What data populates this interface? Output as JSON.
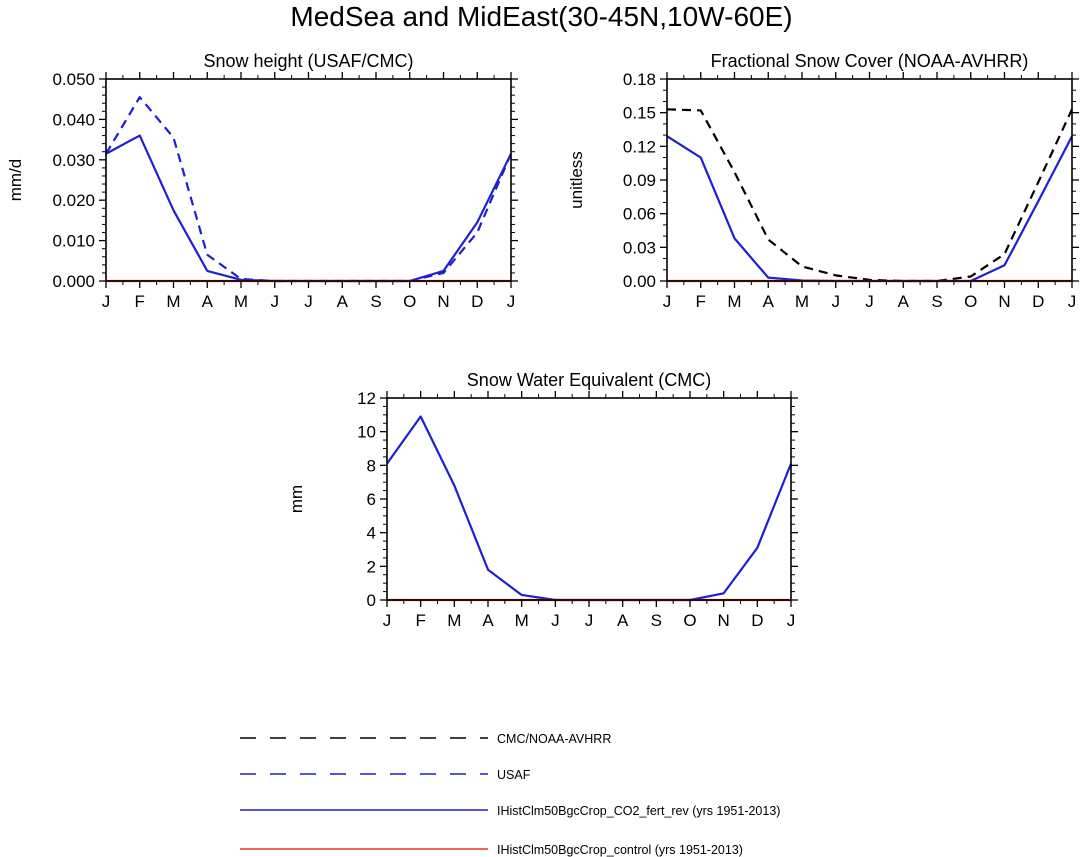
{
  "figure_title": "MedSea and MidEast(30-45N,10W-60E)",
  "legend": {
    "entries": [
      {
        "label": "CMC/NOAA-AVHRR",
        "color": "#000000",
        "dash": "dashed"
      },
      {
        "label": "USAF",
        "color": "#1f1fd6",
        "dash": "dashed"
      },
      {
        "label": "IHistClm50BgcCrop_CO2_fert_rev (yrs 1951-2013)",
        "color": "#1f1fd6",
        "dash": "solid"
      },
      {
        "label": "IHistClm50BgcCrop_control (yrs 1951-2013)",
        "color": "#e8312c",
        "dash": "solid"
      }
    ]
  },
  "chart_data": [
    {
      "type": "line",
      "title": "Snow height (USAF/CMC)",
      "ylabel": "mm/d",
      "x": [
        "J",
        "F",
        "M",
        "A",
        "M",
        "J",
        "J",
        "A",
        "S",
        "O",
        "N",
        "D",
        "J"
      ],
      "ylim": [
        0,
        0.05
      ],
      "yticks": [
        "0.000",
        "0.010",
        "0.020",
        "0.030",
        "0.040",
        "0.050"
      ],
      "yticks_values": [
        0,
        0.01,
        0.02,
        0.03,
        0.04,
        0.05
      ],
      "series": [
        {
          "ref": "USAF",
          "color": "#1f1fd6",
          "dash": "dashed",
          "values": [
            0.0315,
            0.0455,
            0.0355,
            0.0065,
            0.0005,
            0,
            0,
            0,
            0,
            0,
            0.002,
            0.012,
            0.0315
          ]
        },
        {
          "ref": "IHistClm50BgcCrop_CO2_fert_rev",
          "color": "#1f1fd6",
          "dash": "solid",
          "values": [
            0.0315,
            0.036,
            0.0175,
            0.0025,
            0.0003,
            0,
            0,
            0,
            0,
            0,
            0.0025,
            0.0145,
            0.0315
          ]
        },
        {
          "ref": "IHistClm50BgcCrop_control",
          "color": "#e8312c",
          "dash": "solid",
          "values": [
            0,
            0,
            0,
            0,
            0,
            0,
            0,
            0,
            0,
            0,
            0,
            0,
            0
          ]
        }
      ]
    },
    {
      "type": "line",
      "title": "Fractional Snow Cover (NOAA-AVHRR)",
      "ylabel": "unitless",
      "x": [
        "J",
        "F",
        "M",
        "A",
        "M",
        "J",
        "J",
        "A",
        "S",
        "O",
        "N",
        "D",
        "J"
      ],
      "ylim": [
        0,
        0.18
      ],
      "yticks": [
        "0.00",
        "0.03",
        "0.06",
        "0.09",
        "0.12",
        "0.15",
        "0.18"
      ],
      "yticks_values": [
        0,
        0.03,
        0.06,
        0.09,
        0.12,
        0.15,
        0.18
      ],
      "series": [
        {
          "ref": "CMC/NOAA-AVHRR",
          "color": "#000000",
          "dash": "dashed",
          "values": [
            0.153,
            0.152,
            0.097,
            0.037,
            0.013,
            0.005,
            0.001,
            0,
            0,
            0.004,
            0.024,
            0.088,
            0.153
          ]
        },
        {
          "ref": "IHistClm50BgcCrop_CO2_fert_rev",
          "color": "#1f1fd6",
          "dash": "solid",
          "values": [
            0.129,
            0.11,
            0.038,
            0.003,
            0.0005,
            0,
            0,
            0,
            0,
            0,
            0.014,
            0.071,
            0.129
          ]
        },
        {
          "ref": "IHistClm50BgcCrop_control",
          "color": "#e8312c",
          "dash": "solid",
          "values": [
            0,
            0,
            0,
            0,
            0,
            0,
            0,
            0,
            0,
            0,
            0,
            0,
            0
          ]
        }
      ]
    },
    {
      "type": "line",
      "title": "Snow Water Equivalent (CMC)",
      "ylabel": "mm",
      "x": [
        "J",
        "F",
        "M",
        "A",
        "M",
        "J",
        "J",
        "A",
        "S",
        "O",
        "N",
        "D",
        "J"
      ],
      "ylim": [
        0,
        12
      ],
      "yticks": [
        "0",
        "2",
        "4",
        "6",
        "8",
        "10",
        "12"
      ],
      "yticks_values": [
        0,
        2,
        4,
        6,
        8,
        10,
        12
      ],
      "series": [
        {
          "ref": "IHistClm50BgcCrop_CO2_fert_rev",
          "color": "#1f1fd6",
          "dash": "solid",
          "values": [
            8.1,
            10.9,
            6.8,
            1.8,
            0.3,
            0,
            0,
            0,
            0,
            0,
            0.4,
            3.1,
            8.1
          ]
        },
        {
          "ref": "IHistClm50BgcCrop_control",
          "color": "#e8312c",
          "dash": "solid",
          "values": [
            0,
            0,
            0,
            0,
            0,
            0,
            0,
            0,
            0,
            0,
            0,
            0,
            0
          ]
        }
      ]
    }
  ]
}
